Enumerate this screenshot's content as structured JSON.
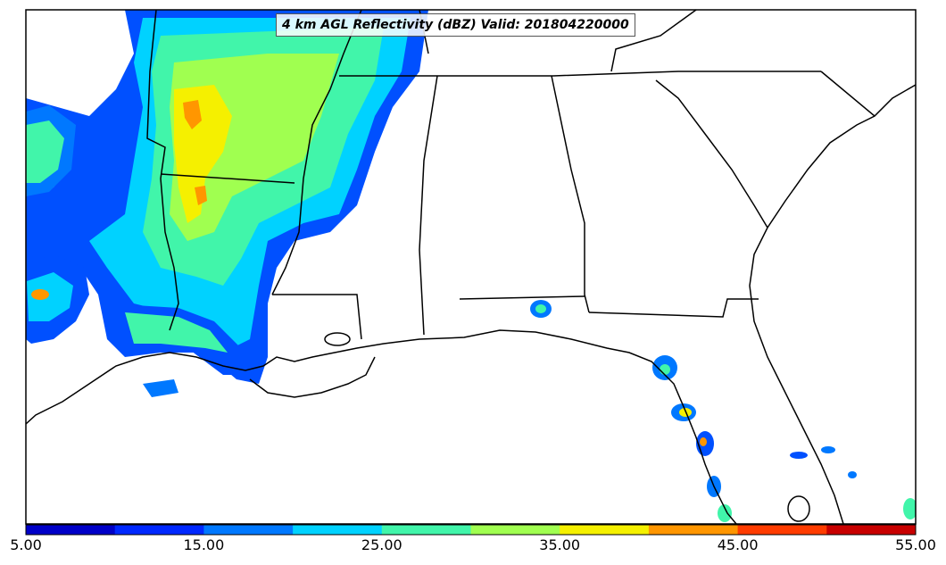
{
  "map": {
    "title": "4 km AGL Reflectivity (dBZ) Valid: 201804220000",
    "region": "Southeastern United States / Gulf Coast",
    "variable": "reflectivity",
    "units": "dBZ"
  },
  "colorbar": {
    "levels": [
      5,
      10,
      15,
      20,
      25,
      30,
      35,
      40,
      45,
      50,
      55
    ],
    "colors": [
      "#0000c8",
      "#0028ff",
      "#0078ff",
      "#00d2ff",
      "#41f5aa",
      "#a0ff50",
      "#f5f000",
      "#ff9600",
      "#ff3c00",
      "#c80000"
    ],
    "tick_labels": [
      "5.00",
      "15.00",
      "25.00",
      "35.00",
      "45.00",
      "55.00"
    ]
  },
  "colors": {
    "background": "#ffffff",
    "coastline": "#000000",
    "frame": "#000000"
  }
}
